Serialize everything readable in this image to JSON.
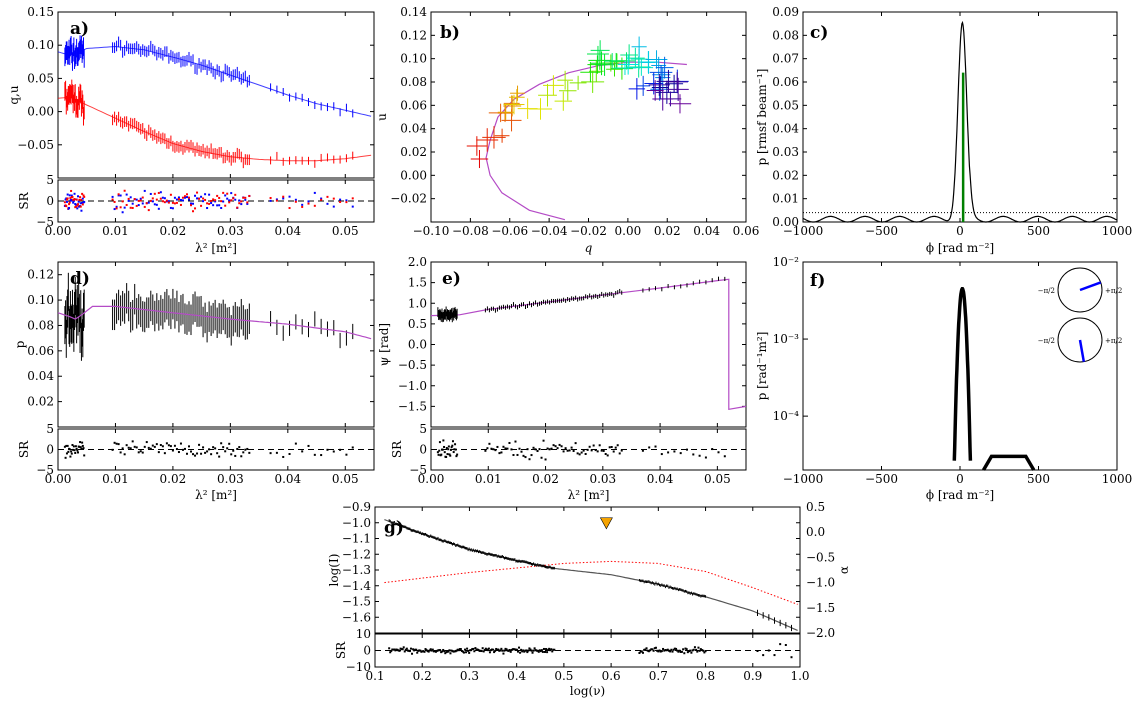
{
  "figure": {
    "panel_count": 7
  },
  "chart_data": [
    {
      "id": "a",
      "type": "line",
      "panel_label": "a)",
      "xlabel": "λ² [m²]",
      "ylabel": "q,u",
      "xlim": [
        0,
        0.055
      ],
      "ylim": [
        -0.1,
        0.15
      ],
      "xticks": [
        0,
        0.01,
        0.02,
        0.03,
        0.04,
        0.05
      ],
      "xtick_labels": [
        "0.00",
        "0.01",
        "0.02",
        "0.03",
        "0.04",
        "0.05"
      ],
      "yticks": [
        -0.05,
        0,
        0.05,
        0.1,
        0.15
      ],
      "ytick_labels": [
        "−0.05",
        "0.00",
        "0.05",
        "0.10",
        "0.15"
      ],
      "series": [
        {
          "name": "u model",
          "color": "#0000ff",
          "x": [
            0,
            0.002,
            0.003,
            0.005,
            0.01,
            0.015,
            0.02,
            0.025,
            0.03,
            0.035,
            0.04,
            0.045,
            0.05,
            0.055
          ],
          "y": [
            0.09,
            0.085,
            0.088,
            0.095,
            0.098,
            0.093,
            0.082,
            0.07,
            0.055,
            0.04,
            0.025,
            0.012,
            0.002,
            -0.008
          ]
        },
        {
          "name": "q model",
          "color": "#ff0000",
          "x": [
            0,
            0.002,
            0.003,
            0.005,
            0.01,
            0.015,
            0.02,
            0.025,
            0.03,
            0.035,
            0.04,
            0.045,
            0.05,
            0.055
          ],
          "y": [
            0.02,
            0.022,
            0.018,
            0.01,
            -0.01,
            -0.03,
            -0.048,
            -0.06,
            -0.068,
            -0.072,
            -0.074,
            -0.074,
            -0.071,
            -0.065
          ]
        }
      ],
      "residual": {
        "ylabel": "SR",
        "ylim": [
          -5,
          5
        ],
        "yticks": [
          -5,
          0,
          5
        ],
        "ytick_labels": [
          "−5",
          "0",
          "5"
        ]
      }
    },
    {
      "id": "b",
      "type": "scatter",
      "panel_label": "b)",
      "xlabel": "q",
      "ylabel": "u",
      "xlim": [
        -0.1,
        0.06
      ],
      "ylim": [
        -0.04,
        0.14
      ],
      "xticks": [
        -0.1,
        -0.08,
        -0.06,
        -0.04,
        -0.02,
        0,
        0.02,
        0.04,
        0.06
      ],
      "xtick_labels": [
        "−0.10",
        "−0.08",
        "−0.06",
        "−0.04",
        "−0.02",
        "0.00",
        "0.02",
        "0.04",
        "0.06"
      ],
      "yticks": [
        -0.02,
        0,
        0.02,
        0.04,
        0.06,
        0.08,
        0.1,
        0.12,
        0.14
      ],
      "ytick_labels": [
        "−0.02",
        "0.00",
        "0.02",
        "0.04",
        "0.06",
        "0.08",
        "0.10",
        "0.12",
        "0.14"
      ],
      "model_curve": {
        "color": "#b44bc6",
        "q": [
          -0.032,
          -0.05,
          -0.064,
          -0.07,
          -0.072,
          -0.07,
          -0.066,
          -0.058,
          -0.045,
          -0.03,
          -0.015,
          0,
          0.015,
          0.03
        ],
        "u": [
          -0.038,
          -0.03,
          -0.015,
          0,
          0.015,
          0.03,
          0.05,
          0.065,
          0.078,
          0.088,
          0.094,
          0.097,
          0.097,
          0.095
        ]
      }
    },
    {
      "id": "c",
      "type": "line",
      "panel_label": "c)",
      "xlabel": "ϕ [rad m⁻²]",
      "ylabel": "p [rmsf beam⁻¹]",
      "xlim": [
        -1000,
        1000
      ],
      "ylim": [
        0,
        0.09
      ],
      "xticks": [
        -1000,
        -500,
        0,
        500,
        1000
      ],
      "xtick_labels": [
        "−1000",
        "−500",
        "0",
        "500",
        "1000"
      ],
      "yticks": [
        0,
        0.01,
        0.02,
        0.03,
        0.04,
        0.05,
        0.06,
        0.07,
        0.08,
        0.09
      ],
      "ytick_labels": [
        "0.00",
        "0.01",
        "0.02",
        "0.03",
        "0.04",
        "0.05",
        "0.06",
        "0.07",
        "0.08",
        "0.09"
      ],
      "peak": {
        "phi": 15,
        "amplitude": 0.085,
        "width": 28
      },
      "clean_component": {
        "phi": 20,
        "amplitude": 0.064
      },
      "noise_level": 0.004
    },
    {
      "id": "d",
      "type": "line",
      "panel_label": "d)",
      "xlabel": "λ² [m²]",
      "ylabel": "p",
      "xlim": [
        0,
        0.055
      ],
      "ylim": [
        0,
        0.13
      ],
      "xticks": [
        0,
        0.01,
        0.02,
        0.03,
        0.04,
        0.05
      ],
      "xtick_labels": [
        "0.00",
        "0.01",
        "0.02",
        "0.03",
        "0.04",
        "0.05"
      ],
      "yticks": [
        0.02,
        0.04,
        0.06,
        0.08,
        0.1,
        0.12
      ],
      "ytick_labels": [
        "0.02",
        "0.04",
        "0.06",
        "0.08",
        "0.10",
        "0.12"
      ],
      "series": [
        {
          "name": "p model",
          "color": "#b44bc6",
          "x": [
            0,
            0.002,
            0.003,
            0.004,
            0.006,
            0.01,
            0.02,
            0.03,
            0.04,
            0.05,
            0.055
          ],
          "y": [
            0.09,
            0.087,
            0.085,
            0.088,
            0.095,
            0.095,
            0.09,
            0.085,
            0.081,
            0.075,
            0.069
          ]
        }
      ],
      "residual": {
        "ylabel": "SR",
        "ylim": [
          -5,
          5
        ],
        "yticks": [
          -5,
          0,
          5
        ],
        "ytick_labels": [
          "−5",
          "0",
          "5"
        ]
      }
    },
    {
      "id": "e",
      "type": "line",
      "panel_label": "e)",
      "xlabel": "λ² [m²]",
      "ylabel": "ψ [rad]",
      "xlim": [
        0,
        0.055
      ],
      "ylim": [
        -2,
        2
      ],
      "xticks": [
        0,
        0.01,
        0.02,
        0.03,
        0.04,
        0.05
      ],
      "xtick_labels": [
        "0.00",
        "0.01",
        "0.02",
        "0.03",
        "0.04",
        "0.05"
      ],
      "yticks": [
        -1.5,
        -1,
        -0.5,
        0,
        0.5,
        1,
        1.5,
        2
      ],
      "ytick_labels": [
        "−1.5",
        "−1.0",
        "−0.5",
        "0.0",
        "0.5",
        "1.0",
        "1.5",
        "2.0"
      ],
      "series": [
        {
          "name": "ψ model",
          "color": "#b44bc6",
          "x": [
            0,
            0.005,
            0.01,
            0.02,
            0.03,
            0.04,
            0.05,
            0.052,
            0.052,
            0.055
          ],
          "y": [
            0.7,
            0.72,
            0.85,
            1.02,
            1.2,
            1.37,
            1.55,
            1.58,
            -1.57,
            -1.5
          ]
        }
      ],
      "residual": {
        "ylabel": "SR",
        "ylim": [
          -5,
          5
        ],
        "yticks": [
          -5,
          0,
          5
        ],
        "ytick_labels": [
          "−5",
          "0",
          "5"
        ]
      }
    },
    {
      "id": "f",
      "type": "line",
      "panel_label": "f)",
      "xlabel": "ϕ [rad m⁻²]",
      "ylabel": "p [rad⁻¹m²]",
      "xlim": [
        -1000,
        1000
      ],
      "yscale": "log",
      "ylim": [
        2e-05,
        0.01
      ],
      "xticks": [
        -1000,
        -500,
        0,
        500,
        1000
      ],
      "xtick_labels": [
        "−1000",
        "−500",
        "0",
        "500",
        "1000"
      ],
      "yticks": [
        0.0001,
        0.001,
        0.01
      ],
      "ytick_labels": [
        "10⁻⁴",
        "10⁻³",
        "10⁻²"
      ],
      "components": [
        {
          "type": "gaussian",
          "phi": 15,
          "peak": 0.0045,
          "width": 35
        },
        {
          "type": "slab",
          "phi_min": 150,
          "phi_max": 470,
          "level": 3e-05
        }
      ],
      "inset_dials": [
        {
          "left_label": "−π/2",
          "right_label": "+π/2",
          "angle_deg": 20
        },
        {
          "left_label": "−π/2",
          "right_label": "+π/2",
          "angle_deg": -80
        }
      ]
    },
    {
      "id": "g",
      "type": "line",
      "panel_label": "g)",
      "xlabel": "log(ν)",
      "ylabel": "log(I)",
      "y2label": "α",
      "xlim": [
        0.1,
        1.0
      ],
      "ylim": [
        -1.7,
        -0.9
      ],
      "y2lim": [
        -2,
        0.5
      ],
      "xticks": [
        0.1,
        0.2,
        0.3,
        0.4,
        0.5,
        0.6,
        0.7,
        0.8,
        0.9,
        1.0
      ],
      "xtick_labels": [
        "0.1",
        "0.2",
        "0.3",
        "0.4",
        "0.5",
        "0.6",
        "0.7",
        "0.8",
        "0.9",
        "1.0"
      ],
      "yticks": [
        -1.6,
        -1.5,
        -1.4,
        -1.3,
        -1.2,
        -1.1,
        -1.0,
        -0.9
      ],
      "ytick_labels": [
        "−1.6",
        "−1.5",
        "−1.4",
        "−1.3",
        "−1.2",
        "−1.1",
        "−1.0",
        "−0.9"
      ],
      "y2ticks": [
        -2,
        -1.5,
        -1,
        -0.5,
        0,
        0.5
      ],
      "y2tick_labels": [
        "−2.0",
        "−1.5",
        "−1.0",
        "−0.5",
        "0.0",
        "0.5"
      ],
      "series": [
        {
          "name": "model",
          "color": "#555555",
          "x": [
            0.12,
            0.2,
            0.3,
            0.4,
            0.48,
            0.6,
            0.7,
            0.8,
            0.9,
            1.0
          ],
          "y": [
            -0.98,
            -1.07,
            -1.17,
            -1.24,
            -1.29,
            -1.33,
            -1.39,
            -1.47,
            -1.56,
            -1.69
          ]
        },
        {
          "name": "α",
          "axis": "y2",
          "style": "dotted",
          "color": "#ff0000",
          "x": [
            0.12,
            0.3,
            0.5,
            0.6,
            0.7,
            0.8,
            0.9,
            1.0
          ],
          "y": [
            -1.0,
            -0.8,
            -0.62,
            -0.58,
            -0.62,
            -0.78,
            -1.1,
            -1.45
          ]
        }
      ],
      "marker": {
        "x": 0.59,
        "y": -1.0,
        "color": "#f5a300"
      },
      "residual": {
        "ylabel": "SR",
        "ylim": [
          -10,
          10
        ],
        "yticks": [
          -10,
          0,
          10
        ],
        "ytick_labels": [
          "−10",
          "0",
          "10"
        ]
      }
    }
  ]
}
